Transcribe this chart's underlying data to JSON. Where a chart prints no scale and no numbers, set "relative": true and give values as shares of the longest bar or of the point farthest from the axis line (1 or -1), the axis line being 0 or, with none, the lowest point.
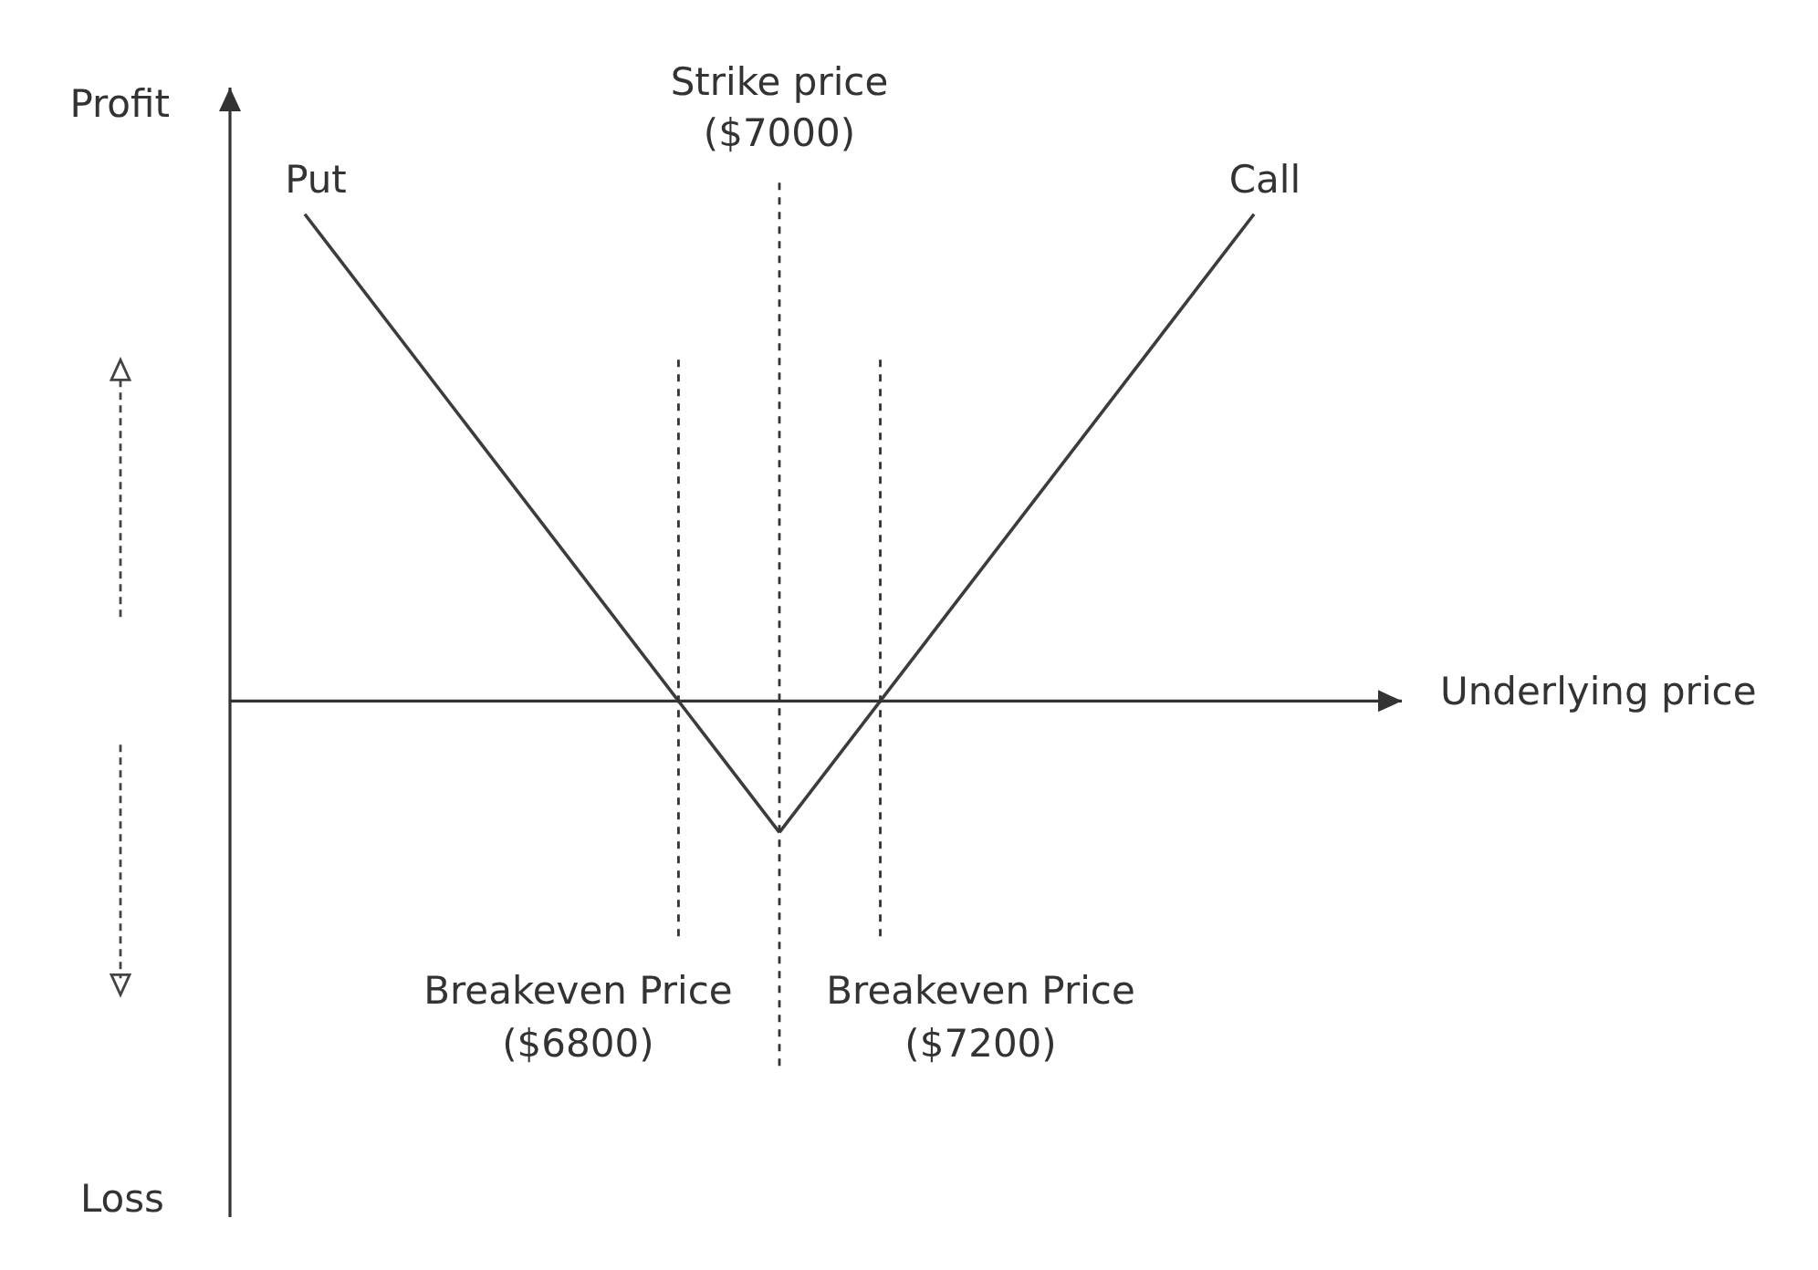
{
  "chart_data": {
    "type": "line",
    "xlabel": "Underlying price",
    "relative": true,
    "categories": [
      null,
      null,
      null
    ],
    "series": [
      {
        "name": "Put",
        "color": "#3c3c3c",
        "values": [
          1,
          -0.27,
          null
        ]
      },
      {
        "name": "Call",
        "color": "#3c3c3c",
        "values": [
          null,
          -0.27,
          1
        ]
      }
    ],
    "annotations": [
      "Profit",
      "Loss",
      "Breakeven Price ($6800)",
      "Strike price ($7000)",
      "Breakeven Price ($7200)"
    ]
  }
}
